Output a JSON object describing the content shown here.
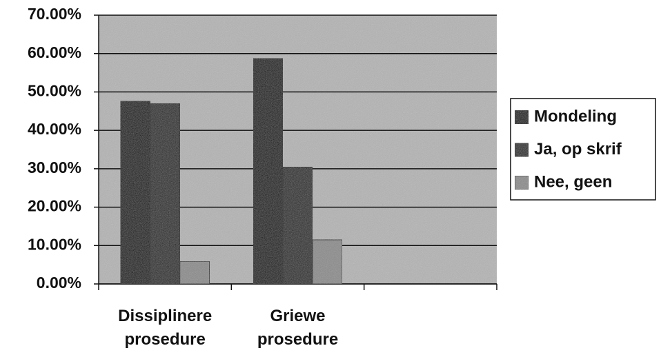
{
  "chart_data": {
    "type": "bar",
    "categories": [
      "Dissiplinere prosedure",
      "Griewe prosedure",
      null
    ],
    "series": [
      {
        "name": "Mondeling",
        "color": "#0d0d0d",
        "values": [
          47.6,
          58.7,
          null
        ]
      },
      {
        "name": "Ja, op skrif",
        "color": "#262626",
        "values": [
          47.0,
          30.5,
          null
        ]
      },
      {
        "name": "Nee, geen",
        "color": "#8c8c8c",
        "values": [
          5.9,
          11.5,
          null
        ]
      }
    ],
    "ylim": [
      0,
      70
    ],
    "yticks": [
      {
        "value": 0,
        "label": "0.00%"
      },
      {
        "value": 10,
        "label": "10.00%"
      },
      {
        "value": 20,
        "label": "20.00%"
      },
      {
        "value": 30,
        "label": "30.00%"
      },
      {
        "value": 40,
        "label": "40.00%"
      },
      {
        "value": 50,
        "label": "50.00%"
      },
      {
        "value": 60,
        "label": "60.00%"
      },
      {
        "value": 70,
        "label": "70.00%"
      }
    ],
    "grid": true,
    "legend": "right",
    "plot_background": "#b4b4b4"
  }
}
